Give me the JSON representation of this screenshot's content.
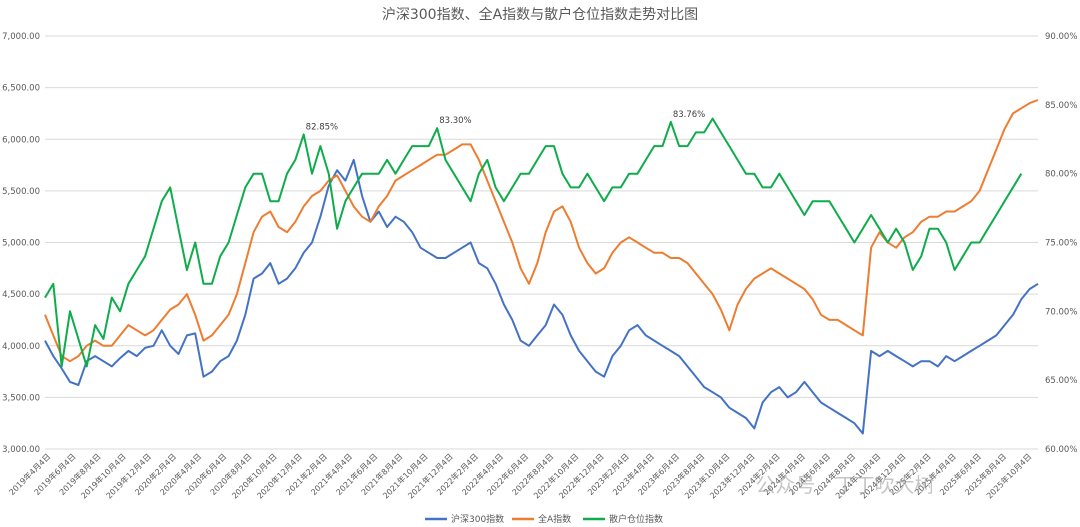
{
  "chart_data": {
    "type": "line",
    "title": "沪深300指数、全A指数与散户仓位指数走势对比图",
    "y_left": {
      "min": 3000,
      "max": 7000,
      "ticks": [
        "3,000.00",
        "3,500.00",
        "4,000.00",
        "4,500.00",
        "5,000.00",
        "5,500.00",
        "6,000.00",
        "6,500.00",
        "7,000.00"
      ]
    },
    "y_right": {
      "min": 60,
      "max": 90,
      "ticks": [
        "60.00%",
        "65.00%",
        "70.00%",
        "75.00%",
        "80.00%",
        "85.00%",
        "90.00%"
      ]
    },
    "x_tick_labels": [
      "2019年4月4日",
      "2019年6月4日",
      "2019年8月4日",
      "2019年10月4日",
      "2019年12月4日",
      "2020年2月4日",
      "2020年4月4日",
      "2020年6月4日",
      "2020年8月4日",
      "2020年10月4日",
      "2020年12月4日",
      "2021年2月4日",
      "2021年4月4日",
      "2021年6月4日",
      "2021年8月4日",
      "2021年10月4日",
      "2021年12月4日",
      "2022年2月4日",
      "2022年4月4日",
      "2022年6月4日",
      "2022年8月4日",
      "2022年10月4日",
      "2022年12月4日",
      "2023年2月4日",
      "2023年4月4日",
      "2023年6月4日",
      "2023年8月4日",
      "2023年10月4日",
      "2023年12月4日",
      "2024年2月4日",
      "2024年4月4日",
      "2024年6月4日",
      "2024年8月4日",
      "2024年10月4日",
      "2024年12月4日",
      "2025年2月4日",
      "2025年4月4日",
      "2025年6月4日",
      "2025年8月4日",
      "2025年10月4日"
    ],
    "series": [
      {
        "name": "沪深300指数",
        "axis": "left",
        "color": "#4472c4",
        "values": [
          4050,
          3900,
          3780,
          3650,
          3620,
          3850,
          3900,
          3850,
          3800,
          3880,
          3950,
          3900,
          3980,
          4000,
          4150,
          4000,
          3920,
          4100,
          4120,
          3700,
          3750,
          3850,
          3900,
          4050,
          4300,
          4650,
          4700,
          4800,
          4600,
          4650,
          4750,
          4900,
          5000,
          5250,
          5550,
          5700,
          5600,
          5800,
          5450,
          5200,
          5300,
          5150,
          5250,
          5200,
          5100,
          4950,
          4900,
          4850,
          4850,
          4900,
          4950,
          5000,
          4800,
          4750,
          4600,
          4400,
          4250,
          4050,
          4000,
          4100,
          4200,
          4400,
          4300,
          4100,
          3950,
          3850,
          3750,
          3700,
          3900,
          4000,
          4150,
          4200,
          4100,
          4050,
          4000,
          3950,
          3900,
          3800,
          3700,
          3600,
          3550,
          3500,
          3400,
          3350,
          3300,
          3200,
          3450,
          3550,
          3600,
          3500,
          3550,
          3650,
          3550,
          3450,
          3400,
          3350,
          3300,
          3250,
          3150,
          3950,
          3900,
          3950,
          3900,
          3850,
          3800,
          3850,
          3850,
          3800,
          3900,
          3850,
          3900,
          3950,
          4000,
          4050,
          4100,
          4200,
          4300,
          4450,
          4550,
          4600
        ]
      },
      {
        "name": "全A指数",
        "axis": "left",
        "color": "#ed7d31",
        "values": [
          4300,
          4100,
          3900,
          3850,
          3900,
          4000,
          4050,
          4000,
          4000,
          4100,
          4200,
          4150,
          4100,
          4150,
          4250,
          4350,
          4400,
          4500,
          4300,
          4050,
          4100,
          4200,
          4300,
          4500,
          4800,
          5100,
          5250,
          5300,
          5150,
          5100,
          5200,
          5350,
          5450,
          5500,
          5600,
          5650,
          5500,
          5350,
          5250,
          5200,
          5350,
          5450,
          5600,
          5650,
          5700,
          5750,
          5800,
          5850,
          5850,
          5900,
          5950,
          5950,
          5800,
          5600,
          5400,
          5200,
          5000,
          4750,
          4600,
          4800,
          5100,
          5300,
          5350,
          5200,
          4950,
          4800,
          4700,
          4750,
          4900,
          5000,
          5050,
          5000,
          4950,
          4900,
          4900,
          4850,
          4850,
          4800,
          4700,
          4600,
          4500,
          4350,
          4150,
          4400,
          4550,
          4650,
          4700,
          4750,
          4700,
          4650,
          4600,
          4550,
          4450,
          4300,
          4250,
          4250,
          4200,
          4150,
          4100,
          4950,
          5100,
          5000,
          4950,
          5050,
          5100,
          5200,
          5250,
          5250,
          5300,
          5300,
          5350,
          5400,
          5500,
          5700,
          5900,
          6100,
          6250,
          6300,
          6350,
          6380
        ]
      },
      {
        "name": "散户仓位指数",
        "axis": "right",
        "color": "#0fac4c",
        "values": [
          71,
          72,
          66,
          70,
          68,
          66,
          69,
          68,
          71,
          70,
          72,
          73,
          74,
          76,
          78,
          79,
          76,
          73,
          75,
          72,
          72,
          74,
          75,
          77,
          79,
          80,
          80,
          78,
          78,
          80,
          81,
          82.85,
          80,
          82,
          80,
          76,
          78,
          79,
          80,
          80,
          80,
          81,
          80,
          81,
          82,
          82,
          82,
          83.3,
          81,
          80,
          79,
          78,
          80,
          81,
          79,
          78,
          79,
          80,
          80,
          81,
          82,
          82,
          80,
          79,
          79,
          80,
          79,
          78,
          79,
          79,
          80,
          80,
          81,
          82,
          82,
          83.76,
          82,
          82,
          83,
          83,
          84,
          83,
          82,
          81,
          80,
          80,
          79,
          79,
          80,
          79,
          78,
          77,
          78,
          78,
          78,
          77,
          76,
          75,
          76,
          77,
          76,
          75,
          76,
          75,
          73,
          74,
          76,
          76,
          75,
          73,
          74,
          75,
          75,
          76,
          77,
          78,
          79,
          80
        ]
      }
    ],
    "annotations": [
      {
        "text": "82.85%",
        "series": "散户仓位指数",
        "index": 31
      },
      {
        "text": "83.30%",
        "series": "散户仓位指数",
        "index": 47
      },
      {
        "text": "83.76%",
        "series": "散户仓位指数",
        "index": 75
      }
    ],
    "legend_position": "bottom"
  },
  "watermark": "公众号 · 丁丁吹大树"
}
